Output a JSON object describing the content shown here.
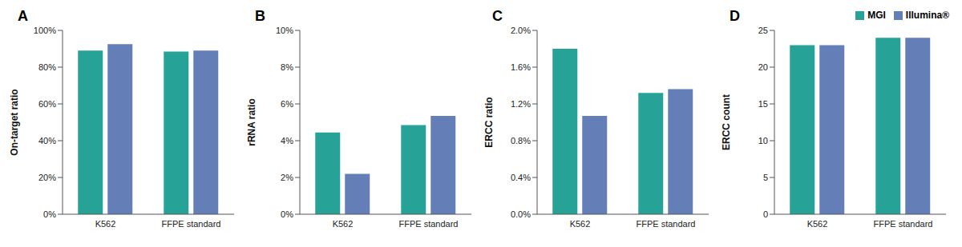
{
  "chart_data": [
    {
      "type": "bar",
      "title": "A",
      "y_label": "On-target ratio",
      "categories": [
        "K562",
        "FFPE standard"
      ],
      "series": [
        {
          "name": "MGI",
          "color": "#26a396",
          "values": [
            89,
            88.5
          ]
        },
        {
          "name": "Illumina®",
          "color": "#647fb8",
          "values": [
            92.5,
            89
          ]
        }
      ],
      "ylim": [
        0,
        100
      ],
      "yticks": [
        {
          "value": 0,
          "label": "0%"
        },
        {
          "value": 20,
          "label": "20%"
        },
        {
          "value": 40,
          "label": "40%"
        },
        {
          "value": 60,
          "label": "60%"
        },
        {
          "value": 80,
          "label": "80%"
        },
        {
          "value": 100,
          "label": "100%"
        }
      ],
      "grid": false
    },
    {
      "type": "bar",
      "title": "B",
      "y_label": "rRNA ratio",
      "categories": [
        "K562",
        "FFPE standard"
      ],
      "series": [
        {
          "name": "MGI",
          "color": "#26a396",
          "values": [
            4.45,
            4.85
          ]
        },
        {
          "name": "Illumina®",
          "color": "#647fb8",
          "values": [
            2.2,
            5.35
          ]
        }
      ],
      "ylim": [
        0,
        10
      ],
      "yticks": [
        {
          "value": 0,
          "label": "0%"
        },
        {
          "value": 2,
          "label": "2%"
        },
        {
          "value": 4,
          "label": "4%"
        },
        {
          "value": 6,
          "label": "6%"
        },
        {
          "value": 8,
          "label": "8%"
        },
        {
          "value": 10,
          "label": "10%"
        }
      ],
      "grid": false
    },
    {
      "type": "bar",
      "title": "C",
      "y_label": "ERCC ratio",
      "categories": [
        "K562",
        "FFPE standard"
      ],
      "series": [
        {
          "name": "MGI",
          "color": "#26a396",
          "values": [
            1.8,
            1.32
          ]
        },
        {
          "name": "Illumina®",
          "color": "#647fb8",
          "values": [
            1.07,
            1.36
          ]
        }
      ],
      "ylim": [
        0,
        2
      ],
      "yticks": [
        {
          "value": 0,
          "label": "0.0%"
        },
        {
          "value": 0.4,
          "label": "0.4%"
        },
        {
          "value": 0.8,
          "label": "0.8%"
        },
        {
          "value": 1.2,
          "label": "1.2%"
        },
        {
          "value": 1.6,
          "label": "1.6%"
        },
        {
          "value": 2,
          "label": "2.0%"
        }
      ],
      "grid": false
    },
    {
      "type": "bar",
      "title": "D",
      "y_label": "ERCC count",
      "categories": [
        "K562",
        "FFPE standard"
      ],
      "series": [
        {
          "name": "MGI",
          "color": "#26a396",
          "values": [
            23,
            24
          ]
        },
        {
          "name": "Illumina®",
          "color": "#647fb8",
          "values": [
            23,
            24
          ]
        }
      ],
      "ylim": [
        0,
        25
      ],
      "yticks": [
        0,
        5,
        10,
        15,
        20,
        25
      ],
      "grid": false,
      "legend": "upper right"
    }
  ]
}
